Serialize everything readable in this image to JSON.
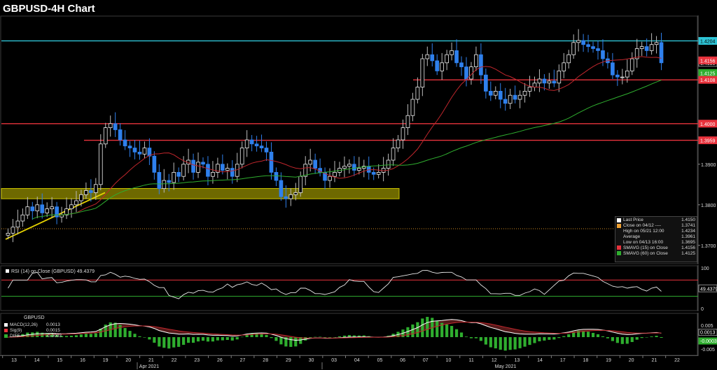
{
  "title": "GBPUSD-4H Chart",
  "colors": {
    "background": "#000000",
    "up_candle": "#f0f0f0",
    "down_candle": "#2f80ed",
    "sma15": "#c0262c",
    "sma60": "#2fae2f",
    "resistance": "#e8323c",
    "cyan_line": "#2ec4d6",
    "yellow_zone": "#c8c000",
    "trendline": "#e6d200"
  },
  "chart_data": [
    {
      "type": "candlestick",
      "title": "GBPUSD-4H Chart",
      "ylim": [
        1.366,
        1.426
      ],
      "y_ticks": [
        "1.3700",
        "1.3800",
        "1.3900"
      ],
      "price_labels": [
        {
          "value": "1.4204",
          "role": "cyan_line",
          "color": "#2ec4d6"
        },
        {
          "value": "1.4150",
          "role": "last_price",
          "color": "#ffffff"
        },
        {
          "value": "1.4156",
          "role": "sma15",
          "color": "#e8323c"
        },
        {
          "value": "1.4125",
          "role": "sma60",
          "color": "#2fae2f"
        },
        {
          "value": "1.4108",
          "role": "resistance",
          "color": "#e8323c"
        },
        {
          "value": "1.4000",
          "role": "resistance",
          "color": "#e8323c"
        },
        {
          "value": "1.3959",
          "role": "resistance",
          "color": "#e8323c"
        }
      ],
      "horizontal_lines": [
        {
          "value": 1.4204,
          "color": "cyan"
        },
        {
          "value": 1.4108,
          "color": "red",
          "from_date": "05/06"
        },
        {
          "value": 1.4,
          "color": "red"
        },
        {
          "value": 1.3959,
          "color": "red",
          "from_date": "04/15"
        },
        {
          "value": 1.3741,
          "color": "orange",
          "style": "dotted"
        }
      ],
      "support_zone": {
        "low": 1.382,
        "high": 1.3835,
        "color": "yellow"
      },
      "x_labels": [
        "13",
        "14",
        "15",
        "16",
        "19",
        "20",
        "21",
        "22",
        "23",
        "26",
        "27",
        "28",
        "29",
        "30",
        "03",
        "04",
        "05",
        "06",
        "07",
        "10",
        "11",
        "12",
        "13",
        "14",
        "17",
        "18",
        "19",
        "20",
        "21",
        "22"
      ],
      "month_labels": [
        "Apr 2021",
        "May 2021"
      ],
      "close_series": [
        1.373,
        1.3745,
        1.376,
        1.3775,
        1.3795,
        1.3785,
        1.38,
        1.378,
        1.379,
        1.3795,
        1.377,
        1.3775,
        1.379,
        1.38,
        1.381,
        1.3825,
        1.3835,
        1.383,
        1.385,
        1.395,
        1.399,
        1.4,
        1.3985,
        1.396,
        1.3945,
        1.394,
        1.393,
        1.3925,
        1.394,
        1.392,
        1.388,
        1.384,
        1.386,
        1.3855,
        1.388,
        1.387,
        1.39,
        1.391,
        1.388,
        1.3905,
        1.39,
        1.387,
        1.388,
        1.39,
        1.3885,
        1.389,
        1.387,
        1.39,
        1.394,
        1.396,
        1.395,
        1.3945,
        1.394,
        1.393,
        1.388,
        1.386,
        1.382,
        1.3815,
        1.3825,
        1.383,
        1.387,
        1.39,
        1.391,
        1.389,
        1.388,
        1.386,
        1.387,
        1.388,
        1.389,
        1.3895,
        1.39,
        1.3885,
        1.389,
        1.3895,
        1.388,
        1.3875,
        1.388,
        1.389,
        1.391,
        1.394,
        1.396,
        1.399,
        1.402,
        1.406,
        1.409,
        1.416,
        1.417,
        1.4155,
        1.413,
        1.415,
        1.417,
        1.418,
        1.415,
        1.414,
        1.411,
        1.414,
        1.417,
        1.412,
        1.408,
        1.407,
        1.408,
        1.406,
        1.405,
        1.407,
        1.406,
        1.407,
        1.408,
        1.409,
        1.41,
        1.411,
        1.41,
        1.4105,
        1.41,
        1.413,
        1.415,
        1.417,
        1.42,
        1.4205,
        1.4195,
        1.419,
        1.4185,
        1.418,
        1.416,
        1.415,
        1.412,
        1.4115,
        1.4115,
        1.413,
        1.416,
        1.4185,
        1.419,
        1.418,
        1.4195,
        1.42,
        1.415
      ]
    },
    {
      "type": "line",
      "title": "RSI (14)  on Close (GBPUSD) 49.4379",
      "label": "RSI (14)  on Close (GBPUSD)",
      "last_value": "49.4379",
      "ylim": [
        0,
        100
      ],
      "y_ticks": [
        "100",
        "0"
      ],
      "levels": [
        70,
        30
      ]
    },
    {
      "type": "line",
      "title": "GBPUSD",
      "y_ticks": [
        "0.005",
        "-0.005"
      ],
      "series": [
        {
          "name": "MACD(12,26)",
          "value": "0.0013",
          "color": "#ffffff"
        },
        {
          "name": "Sig(9)",
          "value": "0.0015",
          "color": "#e8323c"
        },
        {
          "name": "DIFF",
          "value": "-0.0003",
          "color": "#2fae2f"
        }
      ],
      "value_labels": [
        "0.0013",
        "-0.0003"
      ]
    }
  ],
  "legend": {
    "items": [
      {
        "label": "Last Price",
        "value": "1.4150",
        "swatch": "#ffffff"
      },
      {
        "label": "Close on 04/12 ----",
        "value": "1.3741",
        "swatch": "#f0a030"
      },
      {
        "label": "High on 05/21 12:00",
        "value": "1.4234",
        "swatch": "none"
      },
      {
        "label": "Average",
        "value": "1.3961",
        "swatch": "none"
      },
      {
        "label": "Low on 04/13 16:00",
        "value": "1.3695",
        "swatch": "none"
      },
      {
        "label": "SMAVG (15)  on Close",
        "value": "1.4156",
        "swatch": "#e8323c"
      },
      {
        "label": "SMAVG (60)  on Close",
        "value": "1.4125",
        "swatch": "#2fae2f"
      }
    ]
  }
}
